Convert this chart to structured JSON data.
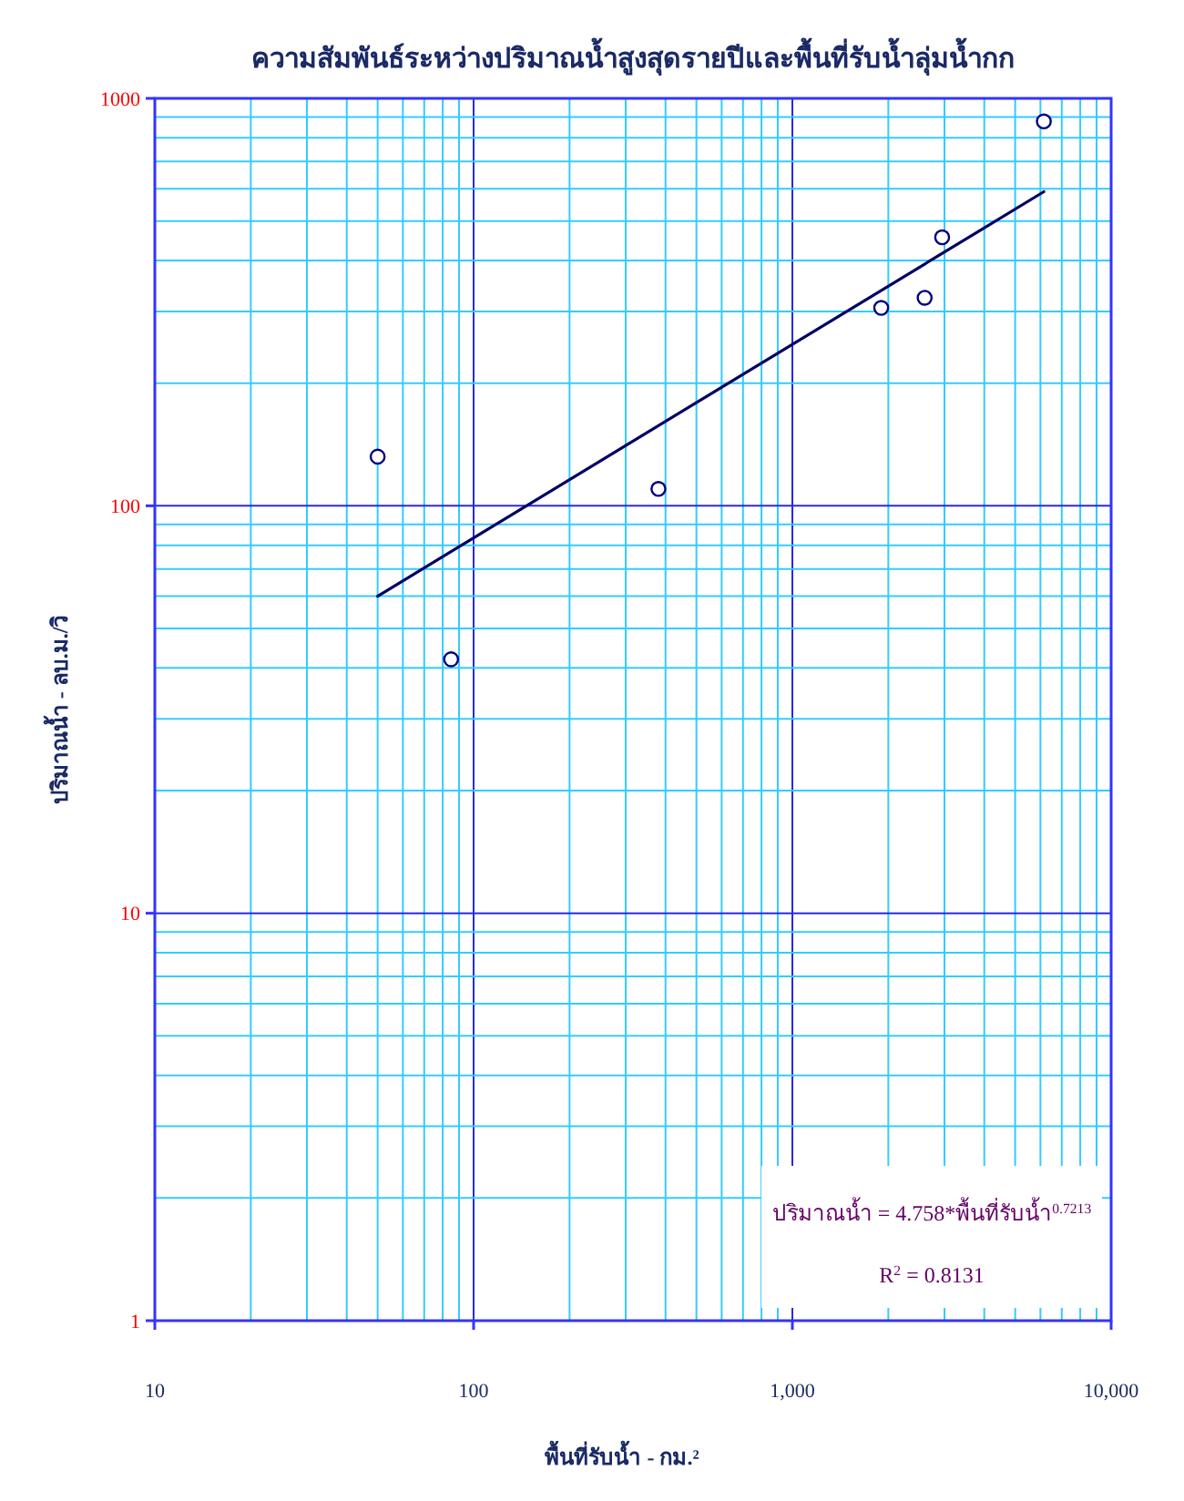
{
  "chart_data": {
    "type": "scatter",
    "title": "ความสัมพันธ์ระหว่างปริมาณน้ำสูงสุดรายปีและพื้นที่รับน้ำลุ่มน้ำกก",
    "xlabel": "พื้นที่รับน้ำ - กม.²",
    "ylabel": "ปริมาณน้ำ - ลบ.ม./วิ",
    "log": "xy",
    "xlim": [
      10,
      10000
    ],
    "ylim": [
      1,
      1000
    ],
    "xticks": [
      10,
      {
        "value": 20,
        "label": null
      },
      {
        "value": 30,
        "label": null
      },
      {
        "value": 40,
        "label": null
      },
      {
        "value": 50,
        "label": null
      },
      {
        "value": 60,
        "label": null
      },
      {
        "value": 70,
        "label": null
      },
      {
        "value": 80,
        "label": null
      },
      {
        "value": 90,
        "label": null
      },
      100,
      {
        "value": 200,
        "label": null
      },
      {
        "value": 300,
        "label": null
      },
      {
        "value": 400,
        "label": null
      },
      {
        "value": 500,
        "label": null
      },
      {
        "value": 600,
        "label": null
      },
      {
        "value": 700,
        "label": null
      },
      {
        "value": 800,
        "label": null
      },
      {
        "value": 900,
        "label": null
      },
      {
        "value": 1000,
        "label": "1,000"
      },
      {
        "value": 2000,
        "label": null
      },
      {
        "value": 3000,
        "label": null
      },
      {
        "value": 4000,
        "label": null
      },
      {
        "value": 5000,
        "label": null
      },
      {
        "value": 6000,
        "label": null
      },
      {
        "value": 7000,
        "label": null
      },
      {
        "value": 8000,
        "label": null
      },
      {
        "value": 9000,
        "label": null
      },
      {
        "value": 10000,
        "label": "10,000"
      }
    ],
    "yticks": [
      1,
      {
        "value": 2,
        "label": null
      },
      {
        "value": 3,
        "label": null
      },
      {
        "value": 4,
        "label": null
      },
      {
        "value": 5,
        "label": null
      },
      {
        "value": 6,
        "label": null
      },
      {
        "value": 7,
        "label": null
      },
      {
        "value": 8,
        "label": null
      },
      {
        "value": 9,
        "label": null
      },
      10,
      {
        "value": 20,
        "label": null
      },
      {
        "value": 30,
        "label": null
      },
      {
        "value": 40,
        "label": null
      },
      {
        "value": 50,
        "label": null
      },
      {
        "value": 60,
        "label": null
      },
      {
        "value": 70,
        "label": null
      },
      {
        "value": 80,
        "label": null
      },
      {
        "value": 90,
        "label": null
      },
      100,
      {
        "value": 200,
        "label": null
      },
      {
        "value": 300,
        "label": null
      },
      {
        "value": 400,
        "label": null
      },
      {
        "value": 500,
        "label": null
      },
      {
        "value": 600,
        "label": null
      },
      {
        "value": 700,
        "label": null
      },
      {
        "value": 800,
        "label": null
      },
      {
        "value": 900,
        "label": null
      },
      1000
    ],
    "grid": true,
    "marker": "circle",
    "series": [
      {
        "color": "#000080",
        "x": [
          50,
          85,
          380,
          1900,
          2600,
          2950,
          6150
        ],
        "values": [
          132,
          42,
          110,
          306,
          324,
          456,
          878
        ]
      },
      {
        "type": "line",
        "color": "#000066",
        "marker": "none",
        "x": [
          50,
          6150
        ],
        "values": [
          60,
          590
        ]
      }
    ],
    "annotations": [
      "ปริมาณน้ำ = 4.758*พื้นที่รับน้ำ$^{0.7213}$",
      "R$^{2}$ = 0.8131"
    ]
  }
}
